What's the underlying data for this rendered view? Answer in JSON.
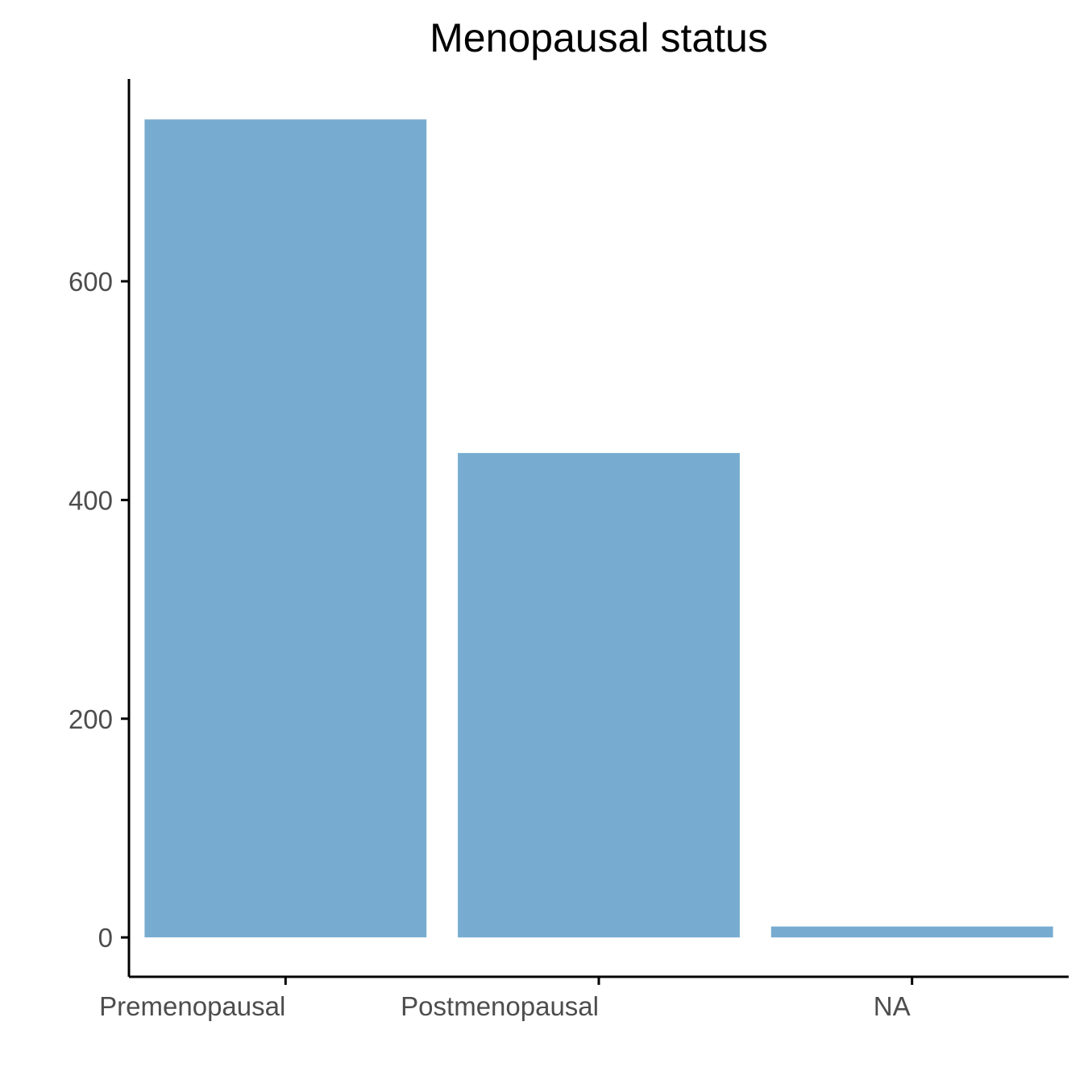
{
  "chart_data": {
    "type": "bar",
    "title": "Menopausal status",
    "xlabel": "",
    "ylabel": "",
    "categories": [
      "Premenopausal",
      "Postmenopausal",
      "NA"
    ],
    "values": [
      748,
      443,
      10
    ],
    "ylim": [
      -36,
      785
    ],
    "yticks": [
      0,
      200,
      400,
      600
    ],
    "bar_color": "#77acd0",
    "grid": false,
    "legend": "none"
  }
}
